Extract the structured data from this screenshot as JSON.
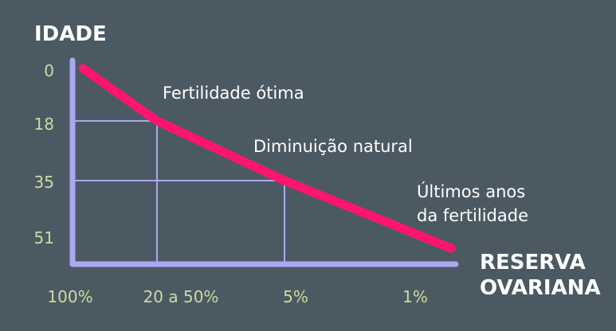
{
  "chart_data": {
    "type": "line",
    "ylabel": "IDADE",
    "xlabel_lines": [
      "RESERVA",
      "OVARIANA"
    ],
    "x_categories": [
      "100%",
      "20 a 50%",
      "5%",
      "1%"
    ],
    "y_ticks": [
      "0",
      "18",
      "35",
      "51"
    ],
    "series": [
      {
        "points": [
          {
            "x": "100%",
            "y": 0
          },
          {
            "x": "20 a 50%",
            "y": 18
          },
          {
            "x": "5%",
            "y": 35
          },
          {
            "x": "1%",
            "y": 51
          }
        ]
      }
    ],
    "annotations": [
      {
        "lines": [
          "Fertilidade ótima"
        ]
      },
      {
        "lines": [
          "Diminuição natural"
        ]
      },
      {
        "lines": [
          "Últimos anos",
          "da fertilidade"
        ]
      }
    ],
    "colors": {
      "background": "#4b5a62",
      "axis": "#aaa8f0",
      "grid": "#aaa8f0",
      "line": "#ff1470",
      "tick_text": "#c9dca0",
      "title_text": "#ffffff"
    }
  }
}
